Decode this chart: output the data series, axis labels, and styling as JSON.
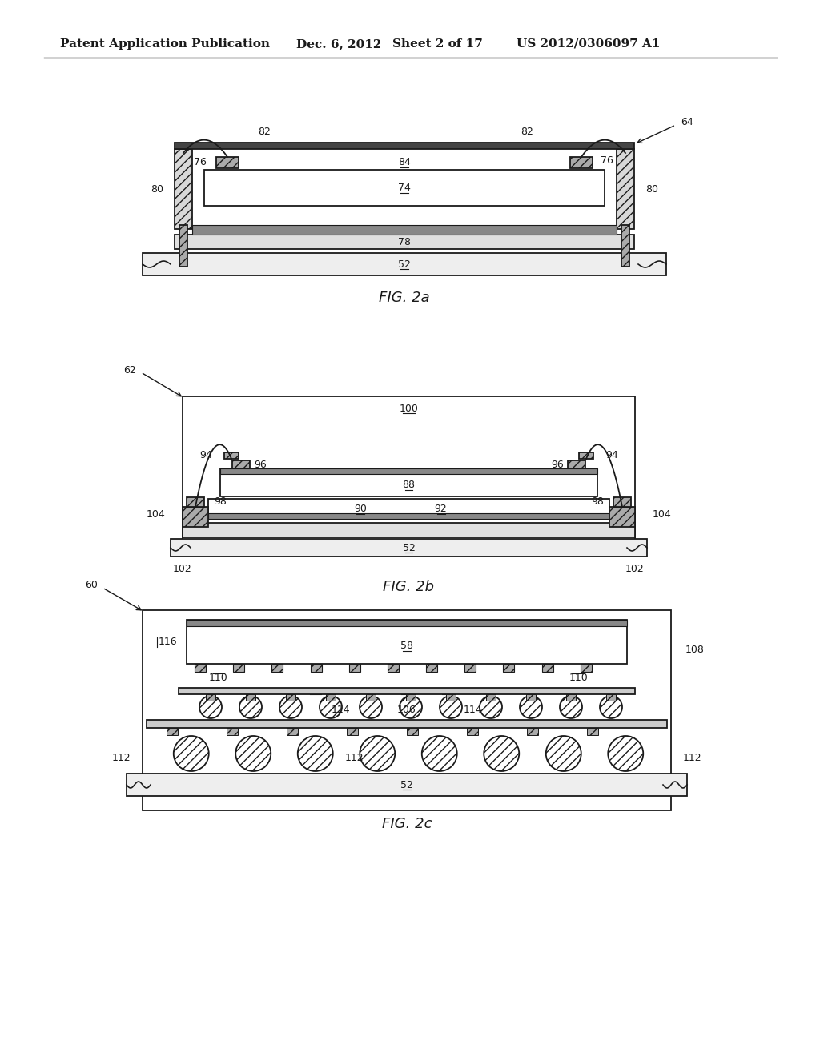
{
  "background_color": "#ffffff",
  "header_text": "Patent Application Publication",
  "header_date": "Dec. 6, 2012",
  "header_sheet": "Sheet 2 of 17",
  "header_patent": "US 2012/0306097 A1",
  "line_color": "#1a1a1a"
}
